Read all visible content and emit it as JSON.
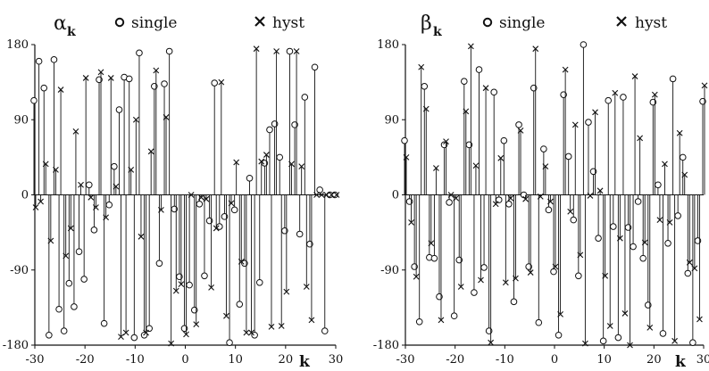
{
  "chart_data": [
    {
      "type": "scatter",
      "title_symbol": "α",
      "title_sub": "k",
      "xlabel": "k",
      "ylabel": "",
      "xlim": [
        -30,
        30
      ],
      "ylim": [
        -180,
        180
      ],
      "xticks": [
        -30,
        -20,
        -10,
        0,
        10,
        20,
        30
      ],
      "yticks": [
        180,
        90,
        0,
        -90,
        -180
      ],
      "drop_lines": true,
      "grid": false,
      "legend_position": "top",
      "series": [
        {
          "name": "single",
          "marker": "circle",
          "x": [
            -30,
            -29,
            -28,
            -27,
            -26,
            -25,
            -24,
            -23,
            -22,
            -21,
            -20,
            -19,
            -18,
            -17,
            -16,
            -15,
            -14,
            -13,
            -12,
            -11,
            -10,
            -9,
            -8,
            -7,
            -6,
            -5,
            -4,
            -3,
            -2,
            -1,
            0,
            1,
            2,
            3,
            4,
            5,
            6,
            7,
            8,
            9,
            10,
            11,
            12,
            13,
            14,
            15,
            16,
            17,
            18,
            19,
            20,
            21,
            22,
            23,
            24,
            25,
            26,
            27,
            28,
            29,
            30
          ],
          "y": [
            113,
            160,
            128,
            -168,
            162,
            -137,
            -163,
            -106,
            -134,
            -68,
            -101,
            12,
            -42,
            138,
            -154,
            -12,
            34,
            102,
            141,
            139,
            -171,
            170,
            -168,
            -160,
            130,
            -82,
            133,
            172,
            -17,
            -98,
            -160,
            -108,
            -138,
            -11,
            -97,
            -31,
            134,
            -38,
            -26,
            -177,
            -18,
            -131,
            -82,
            20,
            -168,
            -105,
            38,
            78,
            85,
            45,
            -43,
            172,
            84,
            -47,
            117,
            -59,
            153,
            6,
            -163,
            0,
            0
          ],
          "point_labels": []
        },
        {
          "name": "hyst",
          "marker": "cross",
          "x": [
            -30,
            -29,
            -28,
            -27,
            -26,
            -25,
            -24,
            -23,
            -22,
            -21,
            -20,
            -19,
            -18,
            -17,
            -16,
            -15,
            -14,
            -13,
            -12,
            -11,
            -10,
            -9,
            -8,
            -7,
            -6,
            -5,
            -4,
            -3,
            -2,
            -1,
            0,
            1,
            2,
            3,
            4,
            5,
            6,
            7,
            8,
            9,
            10,
            11,
            12,
            13,
            14,
            15,
            16,
            17,
            18,
            19,
            20,
            21,
            22,
            23,
            24,
            25,
            26,
            27,
            28,
            29,
            30
          ],
          "y": [
            -15,
            -8,
            37,
            -55,
            30,
            126,
            -73,
            -40,
            76,
            12,
            140,
            -3,
            -15,
            147,
            -27,
            140,
            10,
            -170,
            -165,
            30,
            90,
            -50,
            -165,
            52,
            149,
            -18,
            93,
            -178,
            -115,
            -107,
            -167,
            0,
            -155,
            -3,
            -5,
            -111,
            -40,
            135,
            -145,
            -10,
            39,
            -80,
            -165,
            -165,
            175,
            40,
            48,
            -158,
            172,
            -157,
            -116,
            37,
            172,
            34,
            -110,
            -150,
            0,
            0,
            0,
            0,
            0
          ],
          "point_labels": []
        }
      ]
    },
    {
      "type": "scatter",
      "title_symbol": "β",
      "title_sub": "k",
      "xlabel": "k",
      "ylabel": "",
      "xlim": [
        -30,
        30
      ],
      "ylim": [
        -180,
        180
      ],
      "xticks": [
        -30,
        -20,
        -10,
        0,
        10,
        20,
        30
      ],
      "yticks": [
        180,
        90,
        0,
        -90,
        -180
      ],
      "drop_lines": true,
      "grid": false,
      "legend_position": "top",
      "series": [
        {
          "name": "single",
          "marker": "circle",
          "x": [
            -30,
            -29,
            -28,
            -27,
            -26,
            -25,
            -24,
            -23,
            -22,
            -21,
            -20,
            -19,
            -18,
            -17,
            -16,
            -15,
            -14,
            -13,
            -12,
            -11,
            -10,
            -9,
            -8,
            -7,
            -6,
            -5,
            -4,
            -3,
            -2,
            -1,
            0,
            1,
            2,
            3,
            4,
            5,
            6,
            7,
            8,
            9,
            10,
            11,
            12,
            13,
            14,
            15,
            16,
            17,
            18,
            19,
            20,
            21,
            22,
            23,
            24,
            25,
            26,
            27,
            28,
            29,
            30
          ],
          "y": [
            65,
            -8,
            -86,
            -152,
            130,
            -75,
            -76,
            -122,
            60,
            -9,
            -145,
            -78,
            136,
            60,
            -117,
            150,
            -87,
            -163,
            123,
            -6,
            65,
            -11,
            -128,
            84,
            0,
            -86,
            128,
            -153,
            55,
            -18,
            -92,
            -168,
            120,
            46,
            -30,
            -97,
            180,
            87,
            28,
            -52,
            -175,
            113,
            -38,
            -171,
            117,
            -39,
            -62,
            -8,
            -76,
            -132,
            111,
            12,
            -166,
            -58,
            139,
            -25,
            45,
            -94,
            -177,
            -55,
            112
          ],
          "point_labels": []
        },
        {
          "name": "hyst",
          "marker": "cross",
          "x": [
            -30,
            -29,
            -28,
            -27,
            -26,
            -25,
            -24,
            -23,
            -22,
            -21,
            -20,
            -19,
            -18,
            -17,
            -16,
            -15,
            -14,
            -13,
            -12,
            -11,
            -10,
            -9,
            -8,
            -7,
            -6,
            -5,
            -4,
            -3,
            -2,
            -1,
            0,
            1,
            2,
            3,
            4,
            5,
            6,
            7,
            8,
            9,
            10,
            11,
            12,
            13,
            14,
            15,
            16,
            17,
            18,
            19,
            20,
            21,
            22,
            23,
            24,
            25,
            26,
            27,
            28,
            29,
            30
          ],
          "y": [
            45,
            -33,
            -98,
            153,
            103,
            -58,
            32,
            -150,
            64,
            0,
            -4,
            -110,
            100,
            178,
            35,
            -102,
            128,
            -177,
            -11,
            44,
            -105,
            -4,
            -100,
            77,
            -5,
            -93,
            175,
            -2,
            34,
            -8,
            -86,
            -143,
            150,
            -20,
            84,
            -72,
            -178,
            -1,
            99,
            5,
            -97,
            -157,
            122,
            -52,
            -142,
            -180,
            142,
            68,
            -57,
            -159,
            120,
            -30,
            37,
            -33,
            -175,
            74,
            24,
            -81,
            -88,
            -149,
            131
          ],
          "point_labels": []
        }
      ]
    }
  ]
}
